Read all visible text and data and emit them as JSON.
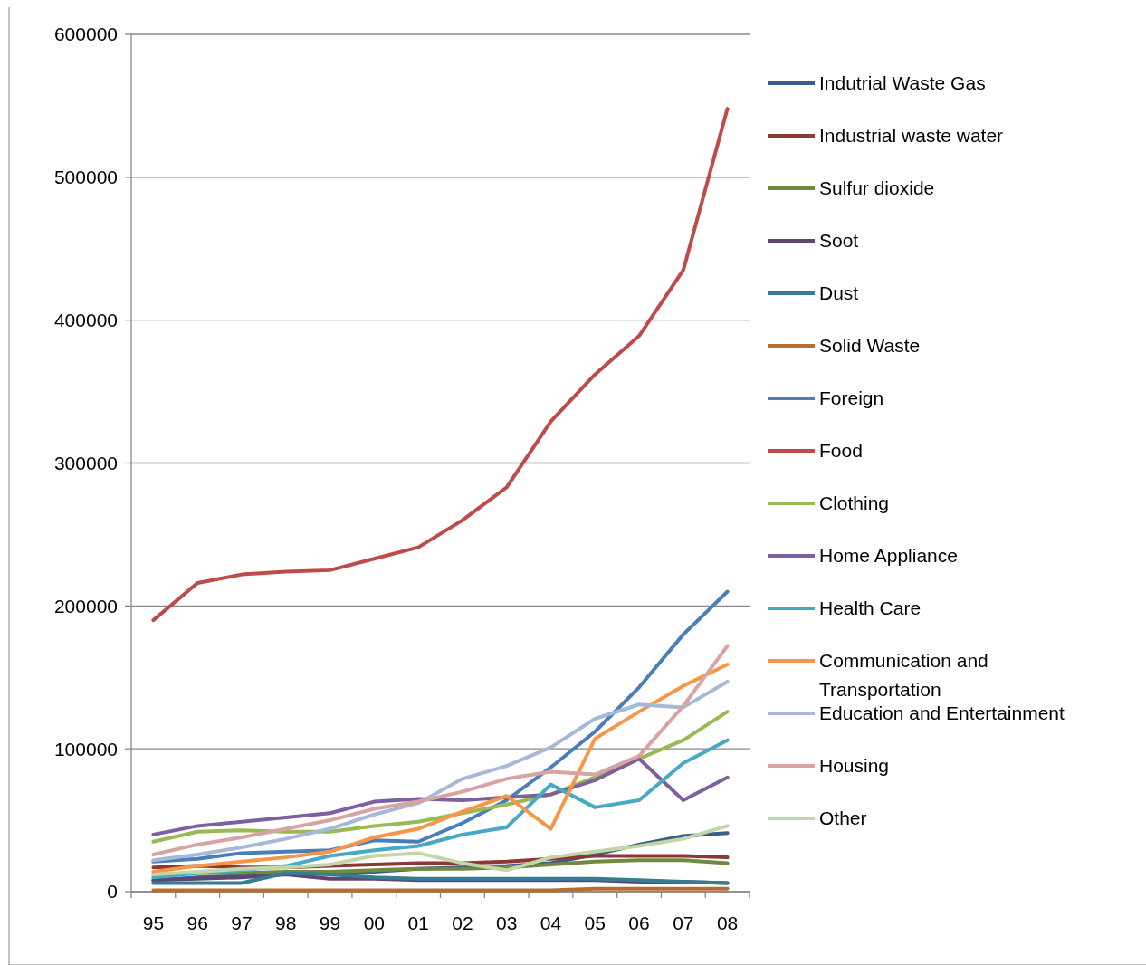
{
  "chart_data": {
    "type": "line",
    "categories": [
      "95",
      "96",
      "97",
      "98",
      "99",
      "00",
      "01",
      "02",
      "03",
      "04",
      "05",
      "06",
      "07",
      "08"
    ],
    "ylim": [
      0,
      600000
    ],
    "yticks": [
      0,
      100000,
      200000,
      300000,
      400000,
      500000,
      600000
    ],
    "grid": "y",
    "legend": "right",
    "marker": "none",
    "series": [
      {
        "name": "Indutrial Waste Gas",
        "color": "#385d8a",
        "values": [
          8000,
          10000,
          11000,
          12000,
          13000,
          14000,
          16000,
          17000,
          18000,
          20000,
          26000,
          33000,
          39000,
          41000
        ]
      },
      {
        "name": "Industrial waste water",
        "color": "#8c3836",
        "values": [
          17000,
          18000,
          17000,
          17000,
          18000,
          19000,
          20000,
          20000,
          21000,
          23000,
          25000,
          25000,
          25000,
          24000
        ]
      },
      {
        "name": "Sulfur dioxide",
        "color": "#71893f",
        "values": [
          12000,
          13000,
          13000,
          14000,
          14000,
          15000,
          16000,
          16000,
          17000,
          19000,
          21000,
          22000,
          22000,
          20000
        ]
      },
      {
        "name": "Soot",
        "color": "#5c4776",
        "values": [
          8000,
          9000,
          10000,
          12000,
          9000,
          9000,
          8000,
          8000,
          8000,
          8000,
          8000,
          7000,
          7000,
          6000
        ]
      },
      {
        "name": "Dust",
        "color": "#357d91",
        "values": [
          6000,
          6000,
          6000,
          13000,
          12000,
          10000,
          9000,
          9000,
          9000,
          9000,
          9000,
          8000,
          7000,
          6000
        ]
      },
      {
        "name": "Solid Waste",
        "color": "#b66d31",
        "values": [
          1000,
          1000,
          1000,
          1000,
          1000,
          1000,
          1000,
          1000,
          1000,
          1000,
          2000,
          2000,
          2000,
          2000
        ]
      },
      {
        "name": "Foreign",
        "color": "#4a7ebb",
        "values": [
          21000,
          23000,
          27000,
          28000,
          29000,
          36000,
          35000,
          48000,
          64000,
          87000,
          112000,
          143000,
          180000,
          210000
        ]
      },
      {
        "name": "Food",
        "color": "#be4b48",
        "values": [
          190000,
          216000,
          222000,
          224000,
          225000,
          233000,
          241000,
          260000,
          283000,
          329000,
          362000,
          389000,
          435000,
          548000
        ]
      },
      {
        "name": "Clothing",
        "color": "#98b954",
        "values": [
          35000,
          42000,
          43000,
          42000,
          42000,
          46000,
          49000,
          55000,
          61000,
          68000,
          80000,
          93000,
          106000,
          126000
        ]
      },
      {
        "name": "Home Appliance",
        "color": "#7d60a0",
        "values": [
          40000,
          46000,
          49000,
          52000,
          55000,
          63000,
          65000,
          64000,
          66000,
          68000,
          78000,
          93000,
          64000,
          80000
        ]
      },
      {
        "name": "Health Care",
        "color": "#46aac5",
        "values": [
          10000,
          13000,
          15000,
          18000,
          25000,
          29000,
          32000,
          40000,
          45000,
          75000,
          59000,
          64000,
          90000,
          106000
        ]
      },
      {
        "name": "Communication and Transportation",
        "color": "#f79646",
        "values": [
          14000,
          18000,
          21000,
          24000,
          28000,
          38000,
          44000,
          56000,
          67000,
          44000,
          107000,
          126000,
          144000,
          159000
        ]
      },
      {
        "name": "Education and Entertainment",
        "color": "#a7b9d9",
        "values": [
          22000,
          26000,
          31000,
          37000,
          44000,
          54000,
          62000,
          79000,
          88000,
          101000,
          121000,
          131000,
          129000,
          147000
        ]
      },
      {
        "name": "Housing",
        "color": "#d7a4a3",
        "values": [
          26000,
          33000,
          38000,
          44000,
          50000,
          58000,
          63000,
          70000,
          79000,
          84000,
          82000,
          95000,
          130000,
          172000
        ]
      },
      {
        "name": "Other",
        "color": "#c3d6a6",
        "values": [
          12000,
          14000,
          16000,
          17000,
          19000,
          25000,
          27000,
          20000,
          15000,
          24000,
          28000,
          32000,
          37000,
          46000
        ]
      }
    ]
  }
}
